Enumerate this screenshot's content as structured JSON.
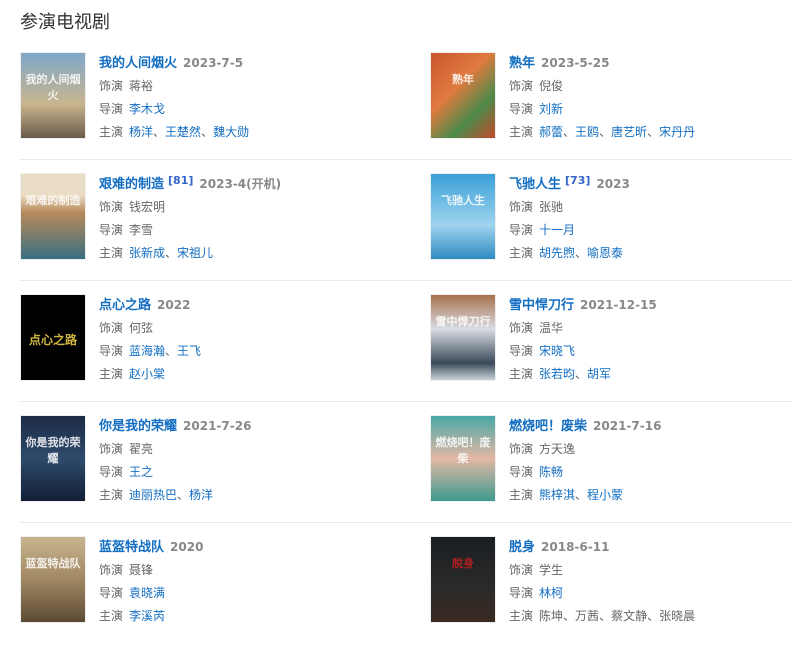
{
  "section_title": "参演电视剧",
  "labels": {
    "role": "饰演",
    "director": "导演",
    "cast": "主演"
  },
  "separator": "、",
  "items": [
    {
      "title": "我的人间烟火",
      "ref": "",
      "date": "2023-7-5",
      "role": "蒋裕",
      "directors": [
        {
          "name": "李木戈",
          "link": true
        }
      ],
      "cast": [
        {
          "name": "杨洋",
          "link": true
        },
        {
          "name": "王楚然",
          "link": true
        },
        {
          "name": "魏大勋",
          "link": true
        }
      ]
    },
    {
      "title": "熟年",
      "ref": "",
      "date": "2023-5-25",
      "role": "倪俊",
      "directors": [
        {
          "name": "刘新",
          "link": true
        }
      ],
      "cast": [
        {
          "name": "郝蕾",
          "link": true
        },
        {
          "name": "王鸥",
          "link": true
        },
        {
          "name": "唐艺昕",
          "link": true
        },
        {
          "name": "宋丹丹",
          "link": true
        }
      ]
    },
    {
      "title": "艰难的制造",
      "ref": "[81]",
      "date": "2023-4(开机)",
      "role": "钱宏明",
      "directors": [
        {
          "name": "李雪",
          "link": false
        }
      ],
      "cast": [
        {
          "name": "张新成",
          "link": true
        },
        {
          "name": "宋祖儿",
          "link": true
        }
      ]
    },
    {
      "title": "飞驰人生",
      "ref": "[73]",
      "date": "2023",
      "role": "张驰",
      "directors": [
        {
          "name": "十一月",
          "link": true
        }
      ],
      "cast": [
        {
          "name": "胡先煦",
          "link": true
        },
        {
          "name": "喻恩泰",
          "link": true
        }
      ]
    },
    {
      "title": "点心之路",
      "ref": "",
      "date": "2022",
      "role": "何弦",
      "directors": [
        {
          "name": "蓝海瀚",
          "link": true
        },
        {
          "name": "王飞",
          "link": true
        }
      ],
      "cast": [
        {
          "name": "赵小棠",
          "link": true
        }
      ]
    },
    {
      "title": "雪中悍刀行",
      "ref": "",
      "date": "2021-12-15",
      "role": "温华",
      "directors": [
        {
          "name": "宋晓飞",
          "link": true
        }
      ],
      "cast": [
        {
          "name": "张若昀",
          "link": true
        },
        {
          "name": "胡军",
          "link": true
        }
      ]
    },
    {
      "title": "你是我的荣耀",
      "ref": "",
      "date": "2021-7-26",
      "role": "翟亮",
      "directors": [
        {
          "name": "王之",
          "link": true
        }
      ],
      "cast": [
        {
          "name": "迪丽热巴",
          "link": true
        },
        {
          "name": "杨洋",
          "link": true
        }
      ]
    },
    {
      "title": "燃烧吧！废柴",
      "ref": "",
      "date": "2021-7-16",
      "role": "方天逸",
      "directors": [
        {
          "name": "陈畅",
          "link": true
        }
      ],
      "cast": [
        {
          "name": "熊梓淇",
          "link": true
        },
        {
          "name": "程小蒙",
          "link": true
        }
      ]
    },
    {
      "title": "蓝盔特战队",
      "ref": "",
      "date": "2020",
      "role": "聂锋",
      "directors": [
        {
          "name": "袁晓满",
          "link": true
        }
      ],
      "cast": [
        {
          "name": "李溪芮",
          "link": true
        }
      ]
    },
    {
      "title": "脱身",
      "ref": "",
      "date": "2018-6-11",
      "role": "学生",
      "directors": [
        {
          "name": "林柯",
          "link": true
        }
      ],
      "cast": [
        {
          "name": "陈坤",
          "link": false
        },
        {
          "name": "万茜",
          "link": false
        },
        {
          "name": "蔡文静",
          "link": false
        },
        {
          "name": "张晓晨",
          "link": false
        }
      ]
    }
  ],
  "colors": {
    "link": "#136ec2",
    "text": "#666666",
    "date": "#888888",
    "divider": "#eaeaea"
  }
}
